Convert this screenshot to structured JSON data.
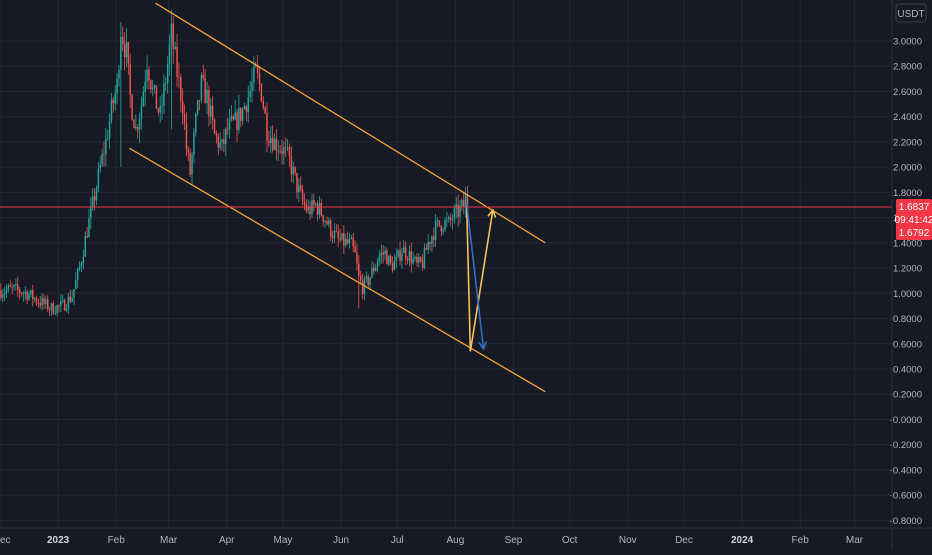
{
  "colors": {
    "background": "#161a25",
    "grid": "#232733",
    "axis_text": "#b2b5be",
    "up": "#26a69a",
    "down": "#ef5350",
    "price_line": "#f23645",
    "channel": "#f7a23b",
    "projection_up": "#f5c15a",
    "projection_down": "#2f6fc0"
  },
  "price_axis": {
    "currency": "USDT",
    "tick_labels": [
      "3.0000",
      "2.8000",
      "2.6000",
      "2.4000",
      "2.2000",
      "2.0000",
      "1.8000",
      "1.6000",
      "1.4000",
      "1.2000",
      "1.0000",
      "0.8000",
      "0.6000",
      "0.4000",
      "0.2000",
      "-0.0000",
      "-0.2000",
      "-0.4000",
      "-0.6000",
      "-0.8000"
    ],
    "current_price": "1.6837",
    "countdown": "09:41:42",
    "secondary_price": "1.6792"
  },
  "chart_data": {
    "type": "candlestick",
    "title": "",
    "xlabel": "",
    "ylabel": "",
    "ylim": [
      -0.85,
      3.3
    ],
    "x_range": [
      "2022-12-01",
      "2024-03-21"
    ],
    "x_tick_labels": [
      {
        "label": "ec",
        "date": "2022-12-01"
      },
      {
        "label": "2023",
        "date": "2023-01-01"
      },
      {
        "label": "Feb",
        "date": "2023-02-01"
      },
      {
        "label": "Mar",
        "date": "2023-03-01"
      },
      {
        "label": "Apr",
        "date": "2023-04-01"
      },
      {
        "label": "May",
        "date": "2023-05-01"
      },
      {
        "label": "Jun",
        "date": "2023-06-01"
      },
      {
        "label": "Jul",
        "date": "2023-07-01"
      },
      {
        "label": "Aug",
        "date": "2023-08-01"
      },
      {
        "label": "Sep",
        "date": "2023-09-01"
      },
      {
        "label": "Oct",
        "date": "2023-10-01"
      },
      {
        "label": "Nov",
        "date": "2023-11-01"
      },
      {
        "label": "Dec",
        "date": "2023-12-01"
      },
      {
        "label": "2024",
        "date": "2024-01-01"
      },
      {
        "label": "Feb",
        "date": "2024-02-01"
      },
      {
        "label": "Mar",
        "date": "2024-03-01"
      }
    ],
    "price_path": [
      [
        "2022-12-01",
        1.02
      ],
      [
        "2022-12-08",
        1.03
      ],
      [
        "2022-12-15",
        1.0
      ],
      [
        "2022-12-20",
        0.95
      ],
      [
        "2022-12-28",
        0.88
      ],
      [
        "2023-01-03",
        0.9
      ],
      [
        "2023-01-08",
        0.98
      ],
      [
        "2023-01-12",
        1.2
      ],
      [
        "2023-01-16",
        1.5
      ],
      [
        "2023-01-19",
        1.7
      ],
      [
        "2023-01-23",
        2.0
      ],
      [
        "2023-01-26",
        2.2
      ],
      [
        "2023-01-29",
        2.45
      ],
      [
        "2023-02-01",
        2.65
      ],
      [
        "2023-02-03",
        3.1
      ],
      [
        "2023-02-06",
        2.9
      ],
      [
        "2023-02-08",
        2.55
      ],
      [
        "2023-02-11",
        2.3
      ],
      [
        "2023-02-14",
        2.5
      ],
      [
        "2023-02-17",
        2.85
      ],
      [
        "2023-02-20",
        2.6
      ],
      [
        "2023-02-24",
        2.4
      ],
      [
        "2023-02-27",
        2.7
      ],
      [
        "2023-03-02",
        3.05
      ],
      [
        "2023-03-05",
        2.75
      ],
      [
        "2023-03-08",
        2.5
      ],
      [
        "2023-03-10",
        2.15
      ],
      [
        "2023-03-12",
        1.95
      ],
      [
        "2023-03-15",
        2.35
      ],
      [
        "2023-03-18",
        2.65
      ],
      [
        "2023-03-21",
        2.55
      ],
      [
        "2023-03-25",
        2.25
      ],
      [
        "2023-03-29",
        2.15
      ],
      [
        "2023-04-01",
        2.3
      ],
      [
        "2023-04-05",
        2.35
      ],
      [
        "2023-04-09",
        2.45
      ],
      [
        "2023-04-13",
        2.6
      ],
      [
        "2023-04-16",
        2.75
      ],
      [
        "2023-04-19",
        2.6
      ],
      [
        "2023-04-22",
        2.3
      ],
      [
        "2023-04-26",
        2.2
      ],
      [
        "2023-04-30",
        2.15
      ],
      [
        "2023-05-04",
        2.05
      ],
      [
        "2023-05-08",
        1.85
      ],
      [
        "2023-05-11",
        1.72
      ],
      [
        "2023-05-14",
        1.65
      ],
      [
        "2023-05-18",
        1.7
      ],
      [
        "2023-05-22",
        1.62
      ],
      [
        "2023-05-26",
        1.5
      ],
      [
        "2023-05-30",
        1.42
      ],
      [
        "2023-06-03",
        1.4
      ],
      [
        "2023-06-06",
        1.38
      ],
      [
        "2023-06-08",
        1.3
      ],
      [
        "2023-06-10",
        1.12
      ],
      [
        "2023-06-12",
        1.05
      ],
      [
        "2023-06-15",
        1.1
      ],
      [
        "2023-06-18",
        1.2
      ],
      [
        "2023-06-21",
        1.3
      ],
      [
        "2023-06-24",
        1.32
      ],
      [
        "2023-06-27",
        1.22
      ],
      [
        "2023-06-30",
        1.25
      ],
      [
        "2023-07-03",
        1.35
      ],
      [
        "2023-07-07",
        1.3
      ],
      [
        "2023-07-11",
        1.22
      ],
      [
        "2023-07-14",
        1.24
      ],
      [
        "2023-07-17",
        1.4
      ],
      [
        "2023-07-21",
        1.52
      ],
      [
        "2023-07-25",
        1.56
      ],
      [
        "2023-07-28",
        1.55
      ],
      [
        "2023-07-31",
        1.62
      ],
      [
        "2023-08-03",
        1.66
      ],
      [
        "2023-08-05",
        1.7
      ],
      [
        "2023-08-06",
        1.76
      ],
      [
        "2023-08-07",
        1.68
      ]
    ],
    "wicks": [
      {
        "date": "2023-02-03",
        "low": 2.0,
        "high": 3.15
      },
      {
        "date": "2023-03-02",
        "low": 2.3,
        "high": 3.12
      },
      {
        "date": "2023-06-10",
        "low": 0.88,
        "high": 1.3
      },
      {
        "date": "2023-08-06",
        "low": 1.6,
        "high": 1.82
      }
    ],
    "drawings": {
      "channel_upper": [
        [
          "2023-02-22",
          3.3
        ],
        [
          "2023-09-18",
          1.4
        ]
      ],
      "channel_lower": [
        [
          "2023-02-08",
          2.15
        ],
        [
          "2023-09-18",
          0.22
        ]
      ],
      "horizontal_price_line": 1.6837,
      "projection_yellow": [
        [
          "2023-08-07",
          1.72
        ],
        [
          "2023-08-09",
          0.54
        ],
        [
          "2023-08-21",
          1.66
        ]
      ],
      "projection_blue": [
        [
          "2023-08-07",
          1.72
        ],
        [
          "2023-08-16",
          0.56
        ]
      ]
    }
  }
}
